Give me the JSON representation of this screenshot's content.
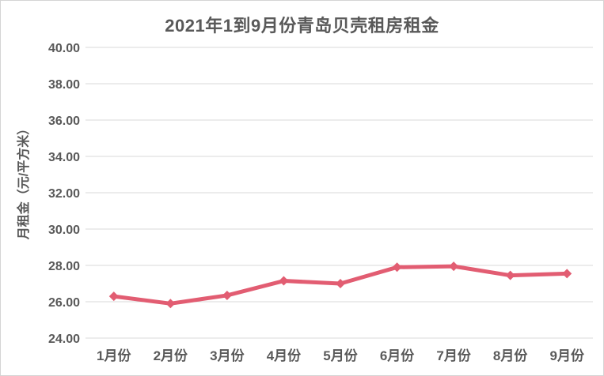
{
  "chart_data": {
    "type": "line",
    "title": "2021年1到9月份青岛贝壳租房租金",
    "ylabel": "月租金（元/平方米）",
    "xlabel": "",
    "categories": [
      "1月份",
      "2月份",
      "3月份",
      "4月份",
      "5月份",
      "6月份",
      "7月份",
      "8月份",
      "9月份"
    ],
    "values": [
      26.3,
      25.9,
      26.35,
      27.15,
      27.0,
      27.9,
      27.95,
      27.45,
      27.55
    ],
    "ylim": [
      24,
      40
    ],
    "y_ticks": [
      "24.00",
      "26.00",
      "28.00",
      "30.00",
      "32.00",
      "34.00",
      "36.00",
      "38.00",
      "40.00"
    ],
    "grid": "horizontal",
    "legend": "none",
    "marker": "diamond",
    "colors": {
      "line": "#e25d72",
      "text": "#595959",
      "grid": "#d9d9d9",
      "background": "#ffffff",
      "border": "#d4d4d4"
    }
  }
}
